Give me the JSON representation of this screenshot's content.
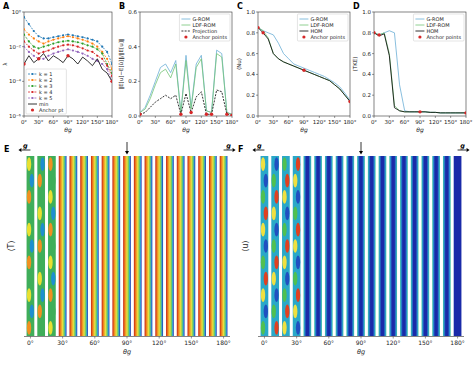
{
  "chart_data": [
    {
      "type": "line",
      "title": "A",
      "xlabel": "θg",
      "ylabel": "λ",
      "log": "y",
      "legend": "lower left",
      "x": [
        0,
        10,
        20,
        30,
        40,
        50,
        60,
        70,
        80,
        90,
        100,
        110,
        120,
        130,
        140,
        150,
        160,
        170,
        180
      ],
      "xlim": [
        0,
        180
      ],
      "xticks": [
        {
          "value": 0,
          "label": "0°"
        },
        {
          "value": 30,
          "label": "30°"
        },
        {
          "value": 60,
          "label": "60°"
        },
        {
          "value": 90,
          "label": "90°"
        },
        {
          "value": 120,
          "label": "120°"
        },
        {
          "value": 150,
          "label": "150°"
        },
        {
          "value": 180,
          "label": "180°"
        }
      ],
      "ylim": [
        1e-06,
        1
      ],
      "yticks": [
        {
          "value": 1e-06,
          "label": "10⁻⁶"
        },
        {
          "value": 0.0001,
          "label": "10⁻⁴"
        },
        {
          "value": 0.01,
          "label": "10⁻²"
        },
        {
          "value": 1,
          "label": "10⁰"
        }
      ],
      "series": [
        {
          "name": "k = 1",
          "color": "#1f77b4",
          "line_style": "dashed",
          "marker": "circle",
          "values": [
            0.5,
            0.2,
            0.08,
            0.04,
            0.03,
            0.03,
            0.035,
            0.04,
            0.045,
            0.05,
            0.045,
            0.04,
            0.035,
            0.03,
            0.025,
            0.02,
            0.01,
            0.005,
            0.001
          ]
        },
        {
          "name": "k = 2",
          "color": "#ff7f0e",
          "line_style": "dashed",
          "marker": "circle",
          "values": [
            0.1,
            0.05,
            0.03,
            0.02,
            0.015,
            0.02,
            0.025,
            0.03,
            0.035,
            0.04,
            0.035,
            0.03,
            0.025,
            0.02,
            0.015,
            0.01,
            0.005,
            0.002,
            0.0005
          ]
        },
        {
          "name": "k = 3",
          "color": "#2ca02c",
          "line_style": "dashed",
          "marker": "circle",
          "values": [
            0.05,
            0.02,
            0.01,
            0.008,
            0.01,
            0.012,
            0.015,
            0.018,
            0.02,
            0.022,
            0.02,
            0.018,
            0.015,
            0.012,
            0.01,
            0.007,
            0.004,
            0.001,
            0.0003
          ]
        },
        {
          "name": "k = 4",
          "color": "#d62728",
          "line_style": "dashed",
          "marker": "circle",
          "values": [
            0.02,
            0.01,
            0.006,
            0.004,
            0.005,
            0.006,
            0.008,
            0.01,
            0.012,
            0.013,
            0.012,
            0.01,
            0.008,
            0.006,
            0.005,
            0.003,
            0.002,
            0.0008,
            0.0002
          ]
        },
        {
          "name": "k = 5",
          "color": "#9467bd",
          "line_style": "dashed",
          "marker": "circle",
          "values": [
            0.01,
            0.005,
            0.003,
            0.002,
            0.002,
            0.003,
            0.004,
            0.005,
            0.006,
            0.007,
            0.006,
            0.005,
            0.004,
            0.003,
            0.002,
            0.0015,
            0.001,
            0.0005,
            0.0001
          ]
        },
        {
          "name": "min",
          "color": "#000000",
          "line_style": "solid",
          "values": [
            0.001,
            0.003,
            0.0012,
            0.002,
            0.004,
            0.0015,
            0.003,
            0.002,
            0.0012,
            0.003,
            0.002,
            0.001,
            0.0025,
            0.0015,
            0.0008,
            0.002,
            0.0005,
            0.0003,
            0.0001
          ]
        },
        {
          "name": "Anchor pt",
          "type": "scatter",
          "color": "#d62728",
          "x": [
            0,
            30,
            90,
            180
          ],
          "values": [
            0.001,
            0.002,
            0.003,
            0.0001
          ]
        }
      ]
    },
    {
      "type": "line",
      "title": "B",
      "xlabel": "θg",
      "ylabel": "‖E[u]−E[ũ]‖/‖E[u]‖",
      "legend": "upper right",
      "x": [
        0,
        10,
        20,
        30,
        40,
        50,
        60,
        70,
        80,
        90,
        100,
        110,
        120,
        130,
        140,
        150,
        160,
        170,
        180
      ],
      "xlim": [
        0,
        180
      ],
      "xticks": [
        {
          "value": 0,
          "label": "0°"
        },
        {
          "value": 30,
          "label": "30°"
        },
        {
          "value": 60,
          "label": "60°"
        },
        {
          "value": 90,
          "label": "90°"
        },
        {
          "value": 120,
          "label": "120°"
        },
        {
          "value": 150,
          "label": "150°"
        },
        {
          "value": 180,
          "label": "180°"
        }
      ],
      "ylim": [
        0,
        0.6
      ],
      "yticks": [
        {
          "value": 0,
          "label": "0.0"
        },
        {
          "value": 0.2,
          "label": "0.2"
        },
        {
          "value": 0.4,
          "label": "0.4"
        },
        {
          "value": 0.6,
          "label": "0.6"
        }
      ],
      "series": [
        {
          "name": "G-ROM",
          "color": "#6baed6",
          "line_style": "solid",
          "values": [
            0.02,
            0.05,
            0.12,
            0.2,
            0.28,
            0.3,
            0.25,
            0.32,
            0.02,
            0.35,
            0.05,
            0.3,
            0.35,
            0.03,
            0.02,
            0.38,
            0.36,
            0.02,
            0.01
          ]
        },
        {
          "name": "LDF-ROM",
          "color": "#74c476",
          "line_style": "solid",
          "values": [
            0.02,
            0.04,
            0.1,
            0.18,
            0.25,
            0.27,
            0.22,
            0.3,
            0.02,
            0.32,
            0.04,
            0.28,
            0.33,
            0.03,
            0.02,
            0.36,
            0.34,
            0.02,
            0.01
          ]
        },
        {
          "name": "Projection",
          "color": "#000000",
          "line_style": "dashed",
          "values": [
            0.01,
            0.02,
            0.05,
            0.08,
            0.1,
            0.12,
            0.1,
            0.12,
            0.01,
            0.13,
            0.02,
            0.11,
            0.14,
            0.01,
            0.01,
            0.15,
            0.14,
            0.01,
            0.005
          ]
        },
        {
          "name": "Anchor points",
          "type": "scatter",
          "color": "#d62728",
          "x": [
            0,
            80,
            100,
            130,
            140,
            170,
            180
          ],
          "values": [
            0.01,
            0.01,
            0.02,
            0.01,
            0.01,
            0.01,
            0.005
          ]
        }
      ]
    },
    {
      "type": "line",
      "title": "C",
      "xlabel": "θg",
      "ylabel": "⟨Nu⟩",
      "legend": "upper right",
      "x": [
        0,
        10,
        20,
        30,
        40,
        50,
        60,
        70,
        80,
        90,
        100,
        110,
        120,
        130,
        140,
        150,
        160,
        170,
        180
      ],
      "xlim": [
        0,
        180
      ],
      "xticks": [
        {
          "value": 0,
          "label": "0°"
        },
        {
          "value": 30,
          "label": "30°"
        },
        {
          "value": 60,
          "label": "60°"
        },
        {
          "value": 90,
          "label": "90°"
        },
        {
          "value": 120,
          "label": "120°"
        },
        {
          "value": 150,
          "label": "150°"
        },
        {
          "value": 180,
          "label": "180°"
        }
      ],
      "ylim": [
        0,
        1
      ],
      "yticks": [
        {
          "value": 0,
          "label": "0.0"
        },
        {
          "value": 0.2,
          "label": "0.2"
        },
        {
          "value": 0.4,
          "label": "0.4"
        },
        {
          "value": 0.6,
          "label": "0.6"
        },
        {
          "value": 0.8,
          "label": "0.8"
        },
        {
          "value": 1,
          "label": "1.0"
        }
      ],
      "series": [
        {
          "name": "G-ROM",
          "color": "#6baed6",
          "line_style": "solid",
          "values": [
            0.85,
            0.82,
            0.8,
            0.78,
            0.7,
            0.6,
            0.55,
            0.5,
            0.48,
            0.46,
            0.44,
            0.42,
            0.4,
            0.38,
            0.35,
            0.32,
            0.28,
            0.22,
            0.15
          ]
        },
        {
          "name": "LDF-ROM",
          "color": "#74c476",
          "line_style": "solid",
          "values": [
            0.85,
            0.82,
            0.75,
            0.6,
            0.55,
            0.52,
            0.5,
            0.48,
            0.46,
            0.44,
            0.42,
            0.4,
            0.38,
            0.36,
            0.34,
            0.3,
            0.26,
            0.2,
            0.14
          ]
        },
        {
          "name": "HOM",
          "color": "#000000",
          "line_style": "solid",
          "values": [
            0.85,
            0.8,
            0.74,
            0.6,
            0.55,
            0.52,
            0.5,
            0.48,
            0.46,
            0.44,
            0.42,
            0.4,
            0.38,
            0.36,
            0.34,
            0.3,
            0.26,
            0.2,
            0.14
          ]
        },
        {
          "name": "Anchor points",
          "type": "scatter",
          "color": "#d62728",
          "x": [
            0,
            10,
            90,
            180
          ],
          "values": [
            0.85,
            0.8,
            0.44,
            0.14
          ]
        }
      ]
    },
    {
      "type": "line",
      "title": "D",
      "xlabel": "θg",
      "ylabel": "⟨TKE⟩",
      "legend": "upper right",
      "x": [
        0,
        10,
        20,
        30,
        40,
        50,
        60,
        70,
        80,
        90,
        100,
        110,
        120,
        130,
        140,
        150,
        160,
        170,
        180
      ],
      "xlim": [
        0,
        180
      ],
      "xticks": [
        {
          "value": 0,
          "label": "0°"
        },
        {
          "value": 30,
          "label": "30°"
        },
        {
          "value": 60,
          "label": "60°"
        },
        {
          "value": 90,
          "label": "90°"
        },
        {
          "value": 120,
          "label": "120°"
        },
        {
          "value": 150,
          "label": "150°"
        },
        {
          "value": 180,
          "label": "180°"
        }
      ],
      "ylim": [
        0,
        1
      ],
      "yticks": [
        {
          "value": 0,
          "label": "0.0"
        },
        {
          "value": 0.2,
          "label": "0.2"
        },
        {
          "value": 0.4,
          "label": "0.4"
        },
        {
          "value": 0.6,
          "label": "0.6"
        },
        {
          "value": 0.8,
          "label": "0.8"
        },
        {
          "value": 1,
          "label": "1.0"
        }
      ],
      "series": [
        {
          "name": "G-ROM",
          "color": "#6baed6",
          "line_style": "solid",
          "values": [
            0.8,
            0.78,
            0.8,
            0.82,
            0.8,
            0.3,
            0.05,
            0.04,
            0.04,
            0.04,
            0.04,
            0.035,
            0.035,
            0.03,
            0.03,
            0.03,
            0.03,
            0.03,
            0.03
          ]
        },
        {
          "name": "LDF-ROM",
          "color": "#74c476",
          "line_style": "solid",
          "values": [
            0.8,
            0.78,
            0.8,
            0.6,
            0.1,
            0.05,
            0.04,
            0.04,
            0.04,
            0.04,
            0.04,
            0.035,
            0.035,
            0.03,
            0.03,
            0.03,
            0.03,
            0.03,
            0.03
          ]
        },
        {
          "name": "HOM",
          "color": "#000000",
          "line_style": "solid",
          "values": [
            0.8,
            0.77,
            0.79,
            0.58,
            0.08,
            0.05,
            0.04,
            0.04,
            0.04,
            0.04,
            0.04,
            0.035,
            0.035,
            0.03,
            0.03,
            0.03,
            0.03,
            0.03,
            0.03
          ]
        },
        {
          "name": "Anchor points",
          "type": "scatter",
          "color": "#d62728",
          "x": [
            0,
            10,
            90,
            180
          ],
          "values": [
            0.8,
            0.78,
            0.04,
            0.03
          ]
        }
      ]
    },
    {
      "type": "field",
      "title": "E",
      "xlabel": "θg",
      "ylabel": "⟨T⟩",
      "x": [
        0,
        10,
        20,
        30,
        40,
        50,
        60,
        70,
        80,
        90,
        100,
        110,
        120,
        130,
        140,
        150,
        160,
        170,
        180
      ],
      "xlim": [
        -6,
        186
      ],
      "xticks": [
        {
          "value": 0,
          "label": "0°"
        },
        {
          "value": 30,
          "label": "30°"
        },
        {
          "value": 60,
          "label": "60°"
        },
        {
          "value": 90,
          "label": "90°"
        },
        {
          "value": 120,
          "label": "120°"
        },
        {
          "value": 150,
          "label": "150°"
        },
        {
          "value": 180,
          "label": "180°"
        }
      ],
      "annotations": [
        {
          "text": "g",
          "x": 0,
          "direction": "left"
        },
        {
          "x": 90,
          "direction": "down"
        },
        {
          "text": "g",
          "x": 180,
          "direction": "right"
        }
      ]
    },
    {
      "type": "field",
      "title": "F",
      "xlabel": "θg",
      "ylabel": "⟨u⟩",
      "x": [
        0,
        10,
        20,
        30,
        40,
        50,
        60,
        70,
        80,
        90,
        100,
        110,
        120,
        130,
        140,
        150,
        160,
        170,
        180
      ],
      "xlim": [
        -6,
        186
      ],
      "xticks": [
        {
          "value": 0,
          "label": "0°"
        },
        {
          "value": 30,
          "label": "30°"
        },
        {
          "value": 60,
          "label": "60°"
        },
        {
          "value": 90,
          "label": "90°"
        },
        {
          "value": 120,
          "label": "120°"
        },
        {
          "value": 150,
          "label": "150°"
        },
        {
          "value": 180,
          "label": "180°"
        }
      ],
      "annotations": [
        {
          "text": "g",
          "x": 0,
          "direction": "left"
        },
        {
          "x": 90,
          "direction": "down"
        },
        {
          "text": "g",
          "x": 180,
          "direction": "right"
        }
      ]
    }
  ]
}
